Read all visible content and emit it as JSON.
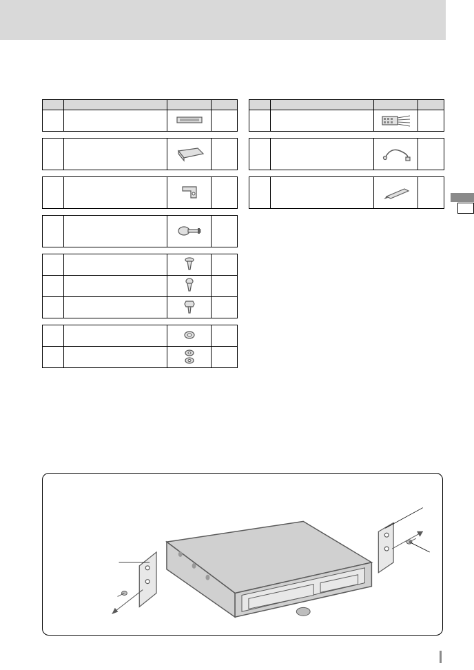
{
  "colors": {
    "header_bg": "#d9d9d9",
    "border": "#000000",
    "page_bg": "#ffffff",
    "side_tab": "#8a8a8a",
    "device_fill": "#d0d0d0",
    "device_stroke": "#5a5a5a"
  },
  "left_tables": [
    {
      "header": [
        "",
        "",
        "",
        ""
      ],
      "rows": [
        {
          "h": "row-med",
          "cells": [
            "",
            "",
            "icon:faceplate",
            ""
          ]
        }
      ]
    },
    {
      "rows": [
        {
          "h": "row-tall",
          "cells": [
            "",
            "",
            "icon:sleeve",
            ""
          ]
        }
      ]
    },
    {
      "rows": [
        {
          "h": "row-tall",
          "cells": [
            "",
            "",
            "icon:bracket",
            ""
          ]
        }
      ]
    },
    {
      "rows": [
        {
          "h": "row-tall",
          "cells": [
            "",
            "",
            "icon:key",
            ""
          ]
        }
      ]
    },
    {
      "rows": [
        {
          "h": "row-med",
          "cells": [
            "",
            "",
            "icon:screw-flat",
            ""
          ]
        },
        {
          "h": "row-med",
          "cells": [
            "",
            "",
            "icon:screw-round",
            ""
          ]
        },
        {
          "h": "row-med",
          "cells": [
            "",
            "",
            "icon:screw-hex",
            ""
          ]
        }
      ]
    },
    {
      "rows": [
        {
          "h": "row-med",
          "cells": [
            "",
            "",
            "icon:washer",
            ""
          ]
        },
        {
          "h": "row-med",
          "cells": [
            "",
            "",
            "icon:washer-pair",
            ""
          ]
        }
      ]
    }
  ],
  "right_tables": [
    {
      "header": [
        "",
        "",
        "",
        ""
      ],
      "rows": [
        {
          "h": "row-med",
          "cells": [
            "",
            "",
            "icon:connector",
            ""
          ]
        }
      ]
    },
    {
      "rows": [
        {
          "h": "row-tall",
          "cells": [
            "",
            "",
            "icon:cable-loop",
            ""
          ]
        }
      ]
    },
    {
      "rows": [
        {
          "h": "row-tall",
          "cells": [
            "",
            "",
            "icon:pen-tool",
            ""
          ]
        }
      ]
    }
  ],
  "figure": {
    "callouts": 3
  }
}
